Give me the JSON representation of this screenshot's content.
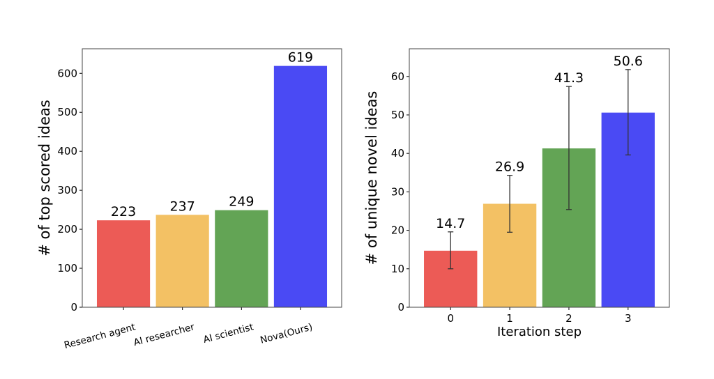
{
  "chart_data": [
    {
      "type": "bar",
      "categories": [
        "Research agent",
        "AI researcher",
        "AI scientist",
        "Nova(Ours)"
      ],
      "values": [
        223,
        237,
        249,
        619
      ],
      "data_labels": [
        "223",
        "237",
        "249",
        "619"
      ],
      "colors": [
        "#ec5b56",
        "#f3c164",
        "#63a455",
        "#4a4af4"
      ],
      "xlabel": "",
      "ylabel": "# of top scored ideas",
      "ylim": [
        0,
        663
      ],
      "yticks": [
        0,
        100,
        200,
        300,
        400,
        500,
        600
      ],
      "xtick_rotation": 15,
      "grid": false
    },
    {
      "type": "bar",
      "categories": [
        "0",
        "1",
        "2",
        "3"
      ],
      "values": [
        14.7,
        26.9,
        41.3,
        50.6
      ],
      "data_labels": [
        "14.7",
        "26.9",
        "41.3",
        "50.6"
      ],
      "error_bars": [
        [
          10.0,
          19.6
        ],
        [
          19.5,
          34.3
        ],
        [
          25.4,
          57.4
        ],
        [
          39.6,
          61.8
        ]
      ],
      "colors": [
        "#ec5b56",
        "#f3c164",
        "#63a455",
        "#4a4af4"
      ],
      "xlabel": "Iteration step",
      "ylabel": "# of unique novel ideas",
      "ylim": [
        0,
        67.2
      ],
      "yticks": [
        0,
        10,
        20,
        30,
        40,
        50,
        60
      ],
      "grid": false
    }
  ]
}
